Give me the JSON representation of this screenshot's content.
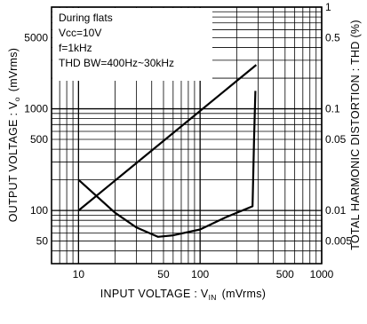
{
  "chart_data": {
    "type": "line",
    "x_scale": "log",
    "y_scale": "log",
    "grid": true,
    "xlim": [
      6,
      1000
    ],
    "ylim": [
      30,
      10000
    ],
    "y2lim": [
      0.003,
      1
    ],
    "xlabel_main": "INPUT  VOLTAGE : V",
    "xlabel_sub": "IN",
    "xlabel_unit": "(mVrms)",
    "ylabel_main": "OUTPUT  VOLTAGE : V",
    "ylabel_sub": "o",
    "ylabel_unit": "(mVrms)",
    "y2label": "TOTAL HARMONIC  DISTORTION : THD  (%)",
    "x_ticks": [
      {
        "value": 10,
        "label": "10"
      },
      {
        "value": 50,
        "label": "50"
      },
      {
        "value": 100,
        "label": "100"
      },
      {
        "value": 500,
        "label": "500"
      },
      {
        "value": 1000,
        "label": "1000"
      }
    ],
    "y_ticks": [
      {
        "value": 50,
        "label": "50"
      },
      {
        "value": 100,
        "label": "100"
      },
      {
        "value": 500,
        "label": "500"
      },
      {
        "value": 1000,
        "label": "1000"
      },
      {
        "value": 5000,
        "label": "5000"
      }
    ],
    "y2_ticks": [
      {
        "value": 0.005,
        "label": "0.005"
      },
      {
        "value": 0.01,
        "label": "0.01"
      },
      {
        "value": 0.05,
        "label": "0.05"
      },
      {
        "value": 0.1,
        "label": "0.1"
      },
      {
        "value": 0.5,
        "label": "0.5"
      },
      {
        "value": 1,
        "label": "1"
      }
    ],
    "conditions": [
      "During flats",
      "Vcc=10V",
      "f=1kHz",
      "THD BW=400Hz~30kHz"
    ],
    "series": [
      {
        "axis": "left",
        "x": [
          10,
          290
        ],
        "y": [
          100,
          2700
        ]
      },
      {
        "axis": "right",
        "x": [
          10,
          20,
          30,
          45,
          60,
          100,
          160,
          270,
          278,
          285
        ],
        "y": [
          0.02,
          0.0095,
          0.0068,
          0.0055,
          0.0057,
          0.0065,
          0.0085,
          0.011,
          0.05,
          0.15
        ]
      }
    ]
  }
}
